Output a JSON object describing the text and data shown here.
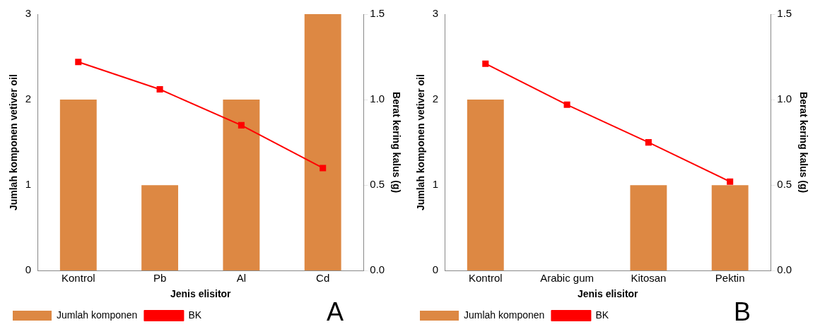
{
  "chart_data": [
    {
      "type": "bar",
      "categories": [
        "Kontrol",
        "Pb",
        "Al",
        "Cd"
      ],
      "xlabel": "Jenis elisitor",
      "ylabel": "Jumlah komponen vetiver oil",
      "y2label": "Berat kering kalus (g)",
      "ylim": [
        0,
        3
      ],
      "yticks": [
        0,
        1,
        2,
        3
      ],
      "y2lim": [
        0,
        1.5
      ],
      "y2ticks": [
        {
          "value": 0,
          "label": "0.0"
        },
        {
          "value": 0.5,
          "label": "0.5"
        },
        {
          "value": 1,
          "label": "1.0"
        },
        {
          "value": 1.5,
          "label": "1.5"
        }
      ],
      "legend": "bottom",
      "marker": "square",
      "annotations": [
        "A"
      ],
      "series": [
        {
          "name": "Jumlah komponen",
          "color": "#dd8843",
          "values": [
            2,
            1,
            2,
            3
          ]
        },
        {
          "name": "BK",
          "type": "line",
          "axis": "y2",
          "color": "#ff0000",
          "values": [
            1.22,
            1.06,
            0.85,
            0.6
          ]
        }
      ]
    },
    {
      "type": "bar",
      "categories": [
        "Kontrol",
        "Arabic gum",
        "Kitosan",
        "Pektin"
      ],
      "xlabel": "Jenis elisitor",
      "ylabel": "Jumlah komponen vetiver oil",
      "y2label": "Berat kering kalus (g)",
      "ylim": [
        0,
        3
      ],
      "yticks": [
        0,
        1,
        2,
        3
      ],
      "y2lim": [
        0,
        1.5
      ],
      "y2ticks": [
        {
          "value": 0,
          "label": "0.0"
        },
        {
          "value": 0.5,
          "label": "0.5"
        },
        {
          "value": 1,
          "label": "1.0"
        },
        {
          "value": 1.5,
          "label": "1.5"
        }
      ],
      "legend": "bottom",
      "marker": "square",
      "annotations": [
        "B"
      ],
      "series": [
        {
          "name": "Jumlah komponen",
          "color": "#dd8843",
          "values": [
            2,
            0,
            1,
            1
          ]
        },
        {
          "name": "BK",
          "type": "line",
          "axis": "y2",
          "color": "#ff0000",
          "values": [
            1.21,
            0.97,
            0.75,
            0.52
          ]
        }
      ]
    }
  ]
}
